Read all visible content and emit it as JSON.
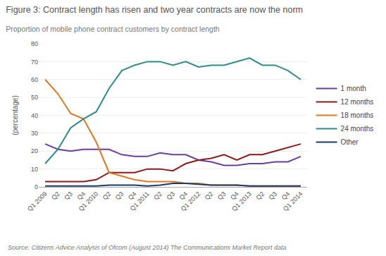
{
  "chart_data": {
    "type": "line",
    "title": "Figure 3: Contract length has risen and two year contracts are now the norm",
    "subtitle": "Proportion of mobile phone contract customers by contract length",
    "annotations": [
      "Source: Citizens Advice Analysis of Ofcom (August 2014) The Communications Market Report data"
    ],
    "ylabel": "(percentage)",
    "ylim": [
      0,
      80
    ],
    "yticks": [
      0,
      10,
      20,
      30,
      40,
      50,
      60,
      70,
      80
    ],
    "categories": [
      "Q1 2009",
      "Q2",
      "Q3",
      "Q4",
      "Q1 2010",
      "Q2",
      "Q3",
      "Q4",
      "Q1 2011",
      "Q2",
      "Q3",
      "Q4",
      "Q1 2012",
      "Q2",
      "Q3",
      "Q4",
      "Q1 2013",
      "Q2",
      "Q3",
      "Q4",
      "Q1 2014"
    ],
    "series": [
      {
        "name": "1 month",
        "color": "#6B3FA0",
        "values": [
          24,
          21,
          20,
          21,
          21,
          21,
          18,
          17,
          17,
          19,
          18,
          18,
          15,
          14,
          12,
          12,
          13,
          13,
          14,
          14,
          17
        ]
      },
      {
        "name": "12 months",
        "color": "#8B1A1A",
        "values": [
          3,
          3,
          3,
          3,
          4,
          8,
          8,
          8,
          10,
          10,
          9,
          13,
          15,
          16,
          18,
          15,
          18,
          18,
          20,
          22,
          24
        ]
      },
      {
        "name": "18 months",
        "color": "#E07820",
        "values": [
          60,
          52,
          41,
          38,
          25,
          8,
          6,
          4,
          3,
          3,
          3,
          2,
          2,
          1,
          1,
          1,
          0.5,
          0.5,
          0.5,
          0.5,
          0.5
        ]
      },
      {
        "name": "24 months",
        "color": "#2E8B8B",
        "values": [
          13,
          21,
          33,
          38,
          42,
          55,
          65,
          68,
          70,
          70,
          68,
          70,
          67,
          68,
          68,
          70,
          72,
          68,
          68,
          65,
          60
        ]
      },
      {
        "name": "Other",
        "color": "#1C3A6B",
        "values": [
          0.5,
          0.5,
          0.5,
          0.5,
          0.5,
          1,
          1,
          1,
          0.5,
          1,
          2,
          2,
          1.5,
          1,
          1,
          1,
          0.5,
          0.5,
          0.5,
          0.5,
          0.5
        ]
      }
    ],
    "grid": true,
    "legend": "right"
  }
}
